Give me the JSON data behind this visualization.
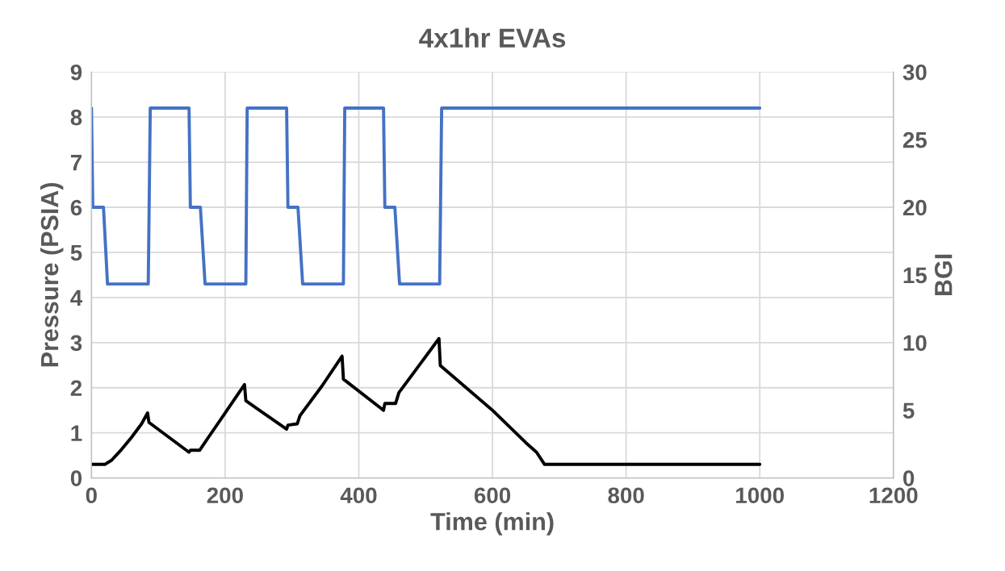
{
  "chart_data": {
    "type": "line",
    "title": "4x1hr EVAs",
    "xlabel": "Time (min)",
    "ylabel": "Pressure (PSIA)",
    "y2label": "BGI",
    "xlim": [
      0,
      1200
    ],
    "xticks": [
      0,
      200,
      400,
      600,
      800,
      1000,
      1200
    ],
    "ylim": [
      0,
      9
    ],
    "yticks": [
      0,
      1,
      2,
      3,
      4,
      5,
      6,
      7,
      8,
      9
    ],
    "y2lim": [
      0,
      30
    ],
    "y2ticks": [
      0,
      5,
      10,
      15,
      20,
      25,
      30
    ],
    "grid": true,
    "marker": "none",
    "line_style": "solid",
    "series": [
      {
        "color": "#4472c4",
        "x": [
          0,
          2,
          18,
          24,
          85,
          88,
          146,
          148,
          163,
          170,
          231,
          233,
          292,
          294,
          309,
          316,
          377,
          379,
          437,
          439,
          454,
          461,
          521,
          524,
          1000
        ],
        "values": [
          8.2,
          6,
          6,
          4.3,
          4.3,
          8.2,
          8.2,
          6,
          6,
          4.3,
          4.3,
          8.2,
          8.2,
          6,
          6,
          4.3,
          4.3,
          8.2,
          8.2,
          6,
          6,
          4.3,
          4.3,
          8.2,
          8.2
        ]
      },
      {
        "color": "#000000",
        "axis": "y2",
        "x": [
          0,
          20,
          30,
          45,
          60,
          75,
          84,
          86,
          146,
          148,
          162,
          175,
          200,
          229,
          231,
          292,
          294,
          308,
          312,
          345,
          375,
          377,
          437,
          439,
          455,
          460,
          490,
          520,
          522,
          600,
          650,
          666,
          678,
          1000
        ],
        "values": [
          1.0,
          1.0,
          1.3,
          2.1,
          3.0,
          4.0,
          4.8,
          4.1,
          1.9,
          2.05,
          2.05,
          3.0,
          4.8,
          6.9,
          5.7,
          3.6,
          3.9,
          4.0,
          4.6,
          6.8,
          9.0,
          7.3,
          5.0,
          5.5,
          5.5,
          6.3,
          8.3,
          10.3,
          8.3,
          5.0,
          2.6,
          1.9,
          1.0,
          1.0
        ]
      }
    ]
  }
}
